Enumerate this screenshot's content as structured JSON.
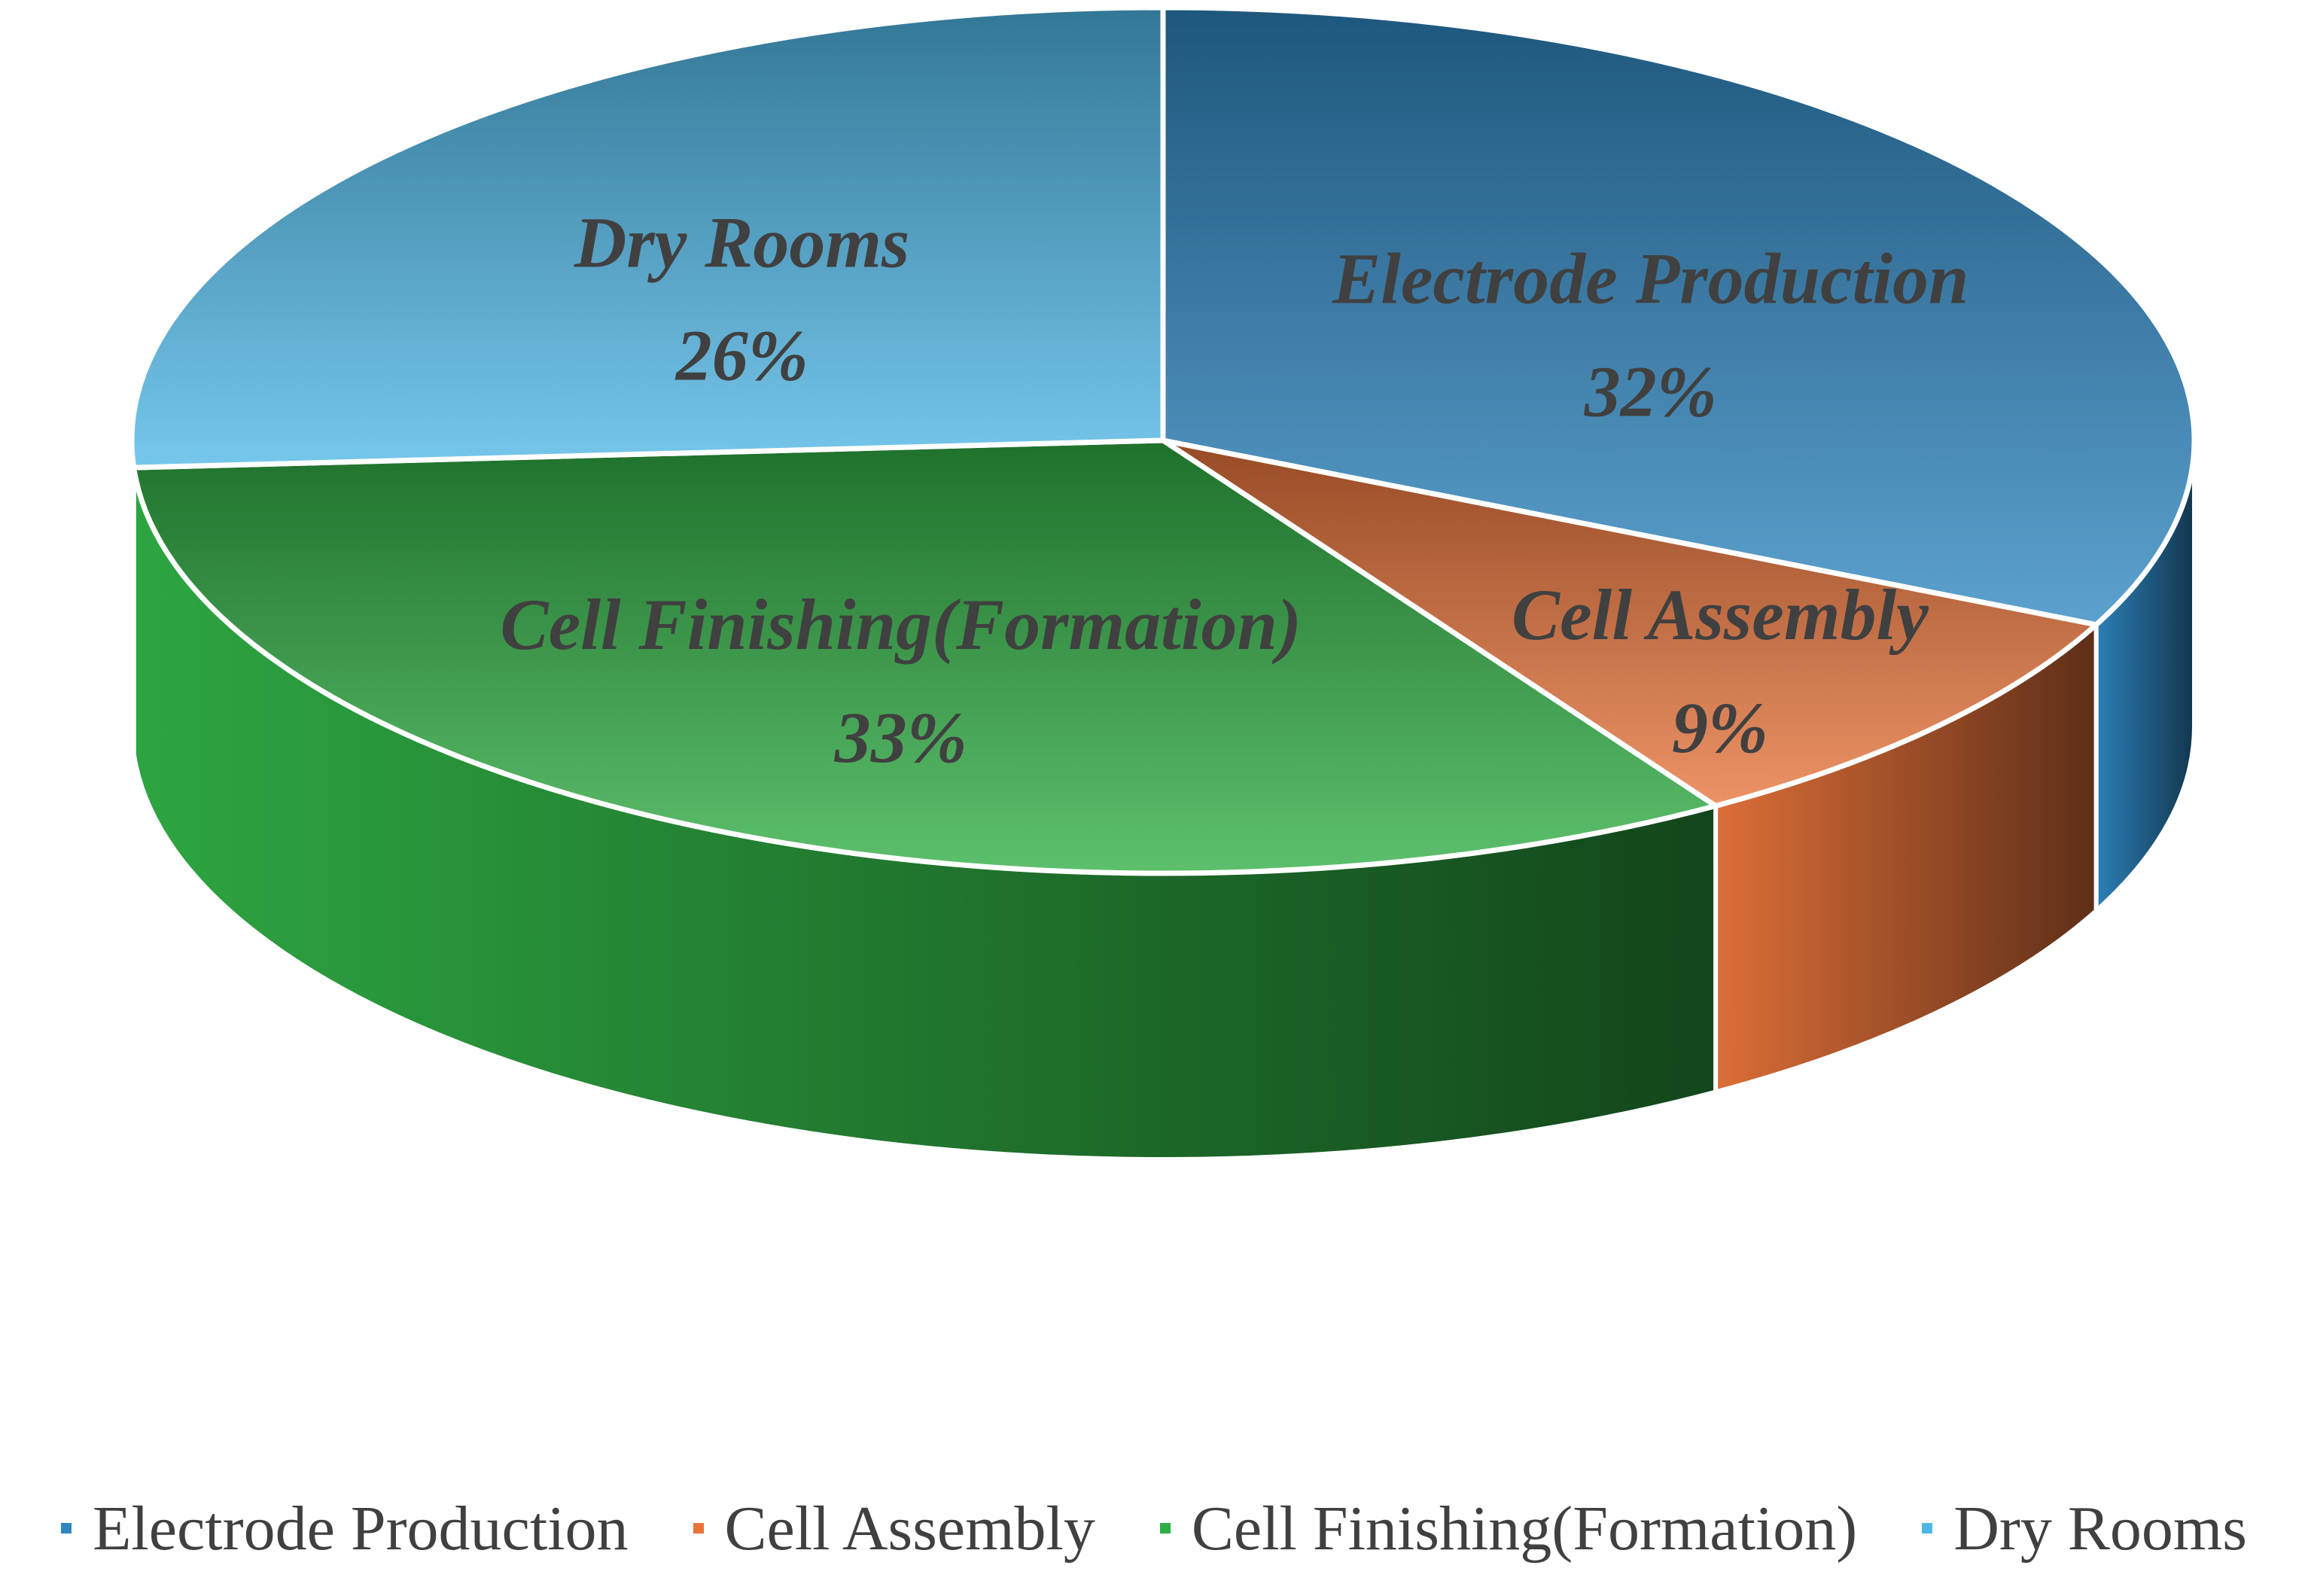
{
  "chart_data": {
    "type": "pie",
    "style": "3d",
    "categories": [
      "Electrode Production",
      "Cell Assembly",
      "Cell Finishing(Formation)",
      "Dry Rooms"
    ],
    "values": [
      32,
      9,
      33,
      26
    ],
    "value_labels": [
      "32%",
      "9%",
      "33%",
      "26%"
    ],
    "colors": [
      "#2E86C1",
      "#E8743B",
      "#2FAE44",
      "#4FB7E6"
    ],
    "legend_position": "bottom"
  }
}
